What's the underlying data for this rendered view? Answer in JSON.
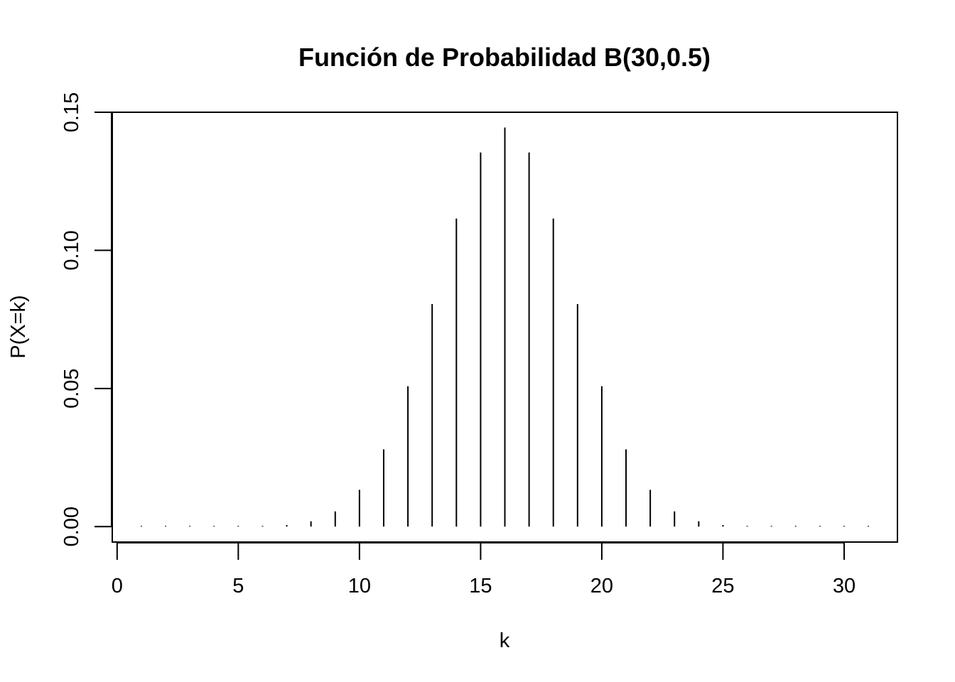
{
  "chart_data": {
    "type": "bar",
    "title": "Función de Probabilidad B(30,0.5)",
    "xlabel": "k",
    "ylabel": "P(X=k)",
    "xlim": [
      -0.2,
      32.2
    ],
    "ylim": [
      -0.0056,
      0.15
    ],
    "xticks": [
      0,
      5,
      10,
      15,
      20,
      25,
      30
    ],
    "xtick_labels": [
      "0",
      "5",
      "10",
      "15",
      "20",
      "25",
      "30"
    ],
    "yticks": [
      0.0,
      0.05,
      0.1,
      0.15
    ],
    "ytick_labels": [
      "0.00",
      "0.05",
      "0.10",
      "0.15"
    ],
    "grid": false,
    "series": [
      {
        "x": [
          1,
          2,
          3,
          4,
          5,
          6,
          7,
          8,
          9,
          10,
          11,
          12,
          13,
          14,
          15,
          16,
          17,
          18,
          19,
          20,
          21,
          22,
          23,
          24,
          25,
          26,
          27,
          28,
          29,
          30,
          31
        ],
        "values": [
          9e-10,
          2.79e-08,
          4.051e-07,
          3.7806e-06,
          2.5519e-05,
          0.0001327,
          0.000553,
          0.0019158,
          0.0054986,
          0.0133107,
          0.0279527,
          0.0508231,
          0.0805521,
          0.1115337,
          0.1354337,
          0.1444627,
          0.1354337,
          0.1115337,
          0.0805521,
          0.0508231,
          0.0279527,
          0.0133107,
          0.0054986,
          0.0019158,
          0.000553,
          0.0001327,
          2.5519e-05,
          3.7806e-06,
          4.051e-07,
          2.79e-08,
          9e-10
        ]
      }
    ]
  }
}
